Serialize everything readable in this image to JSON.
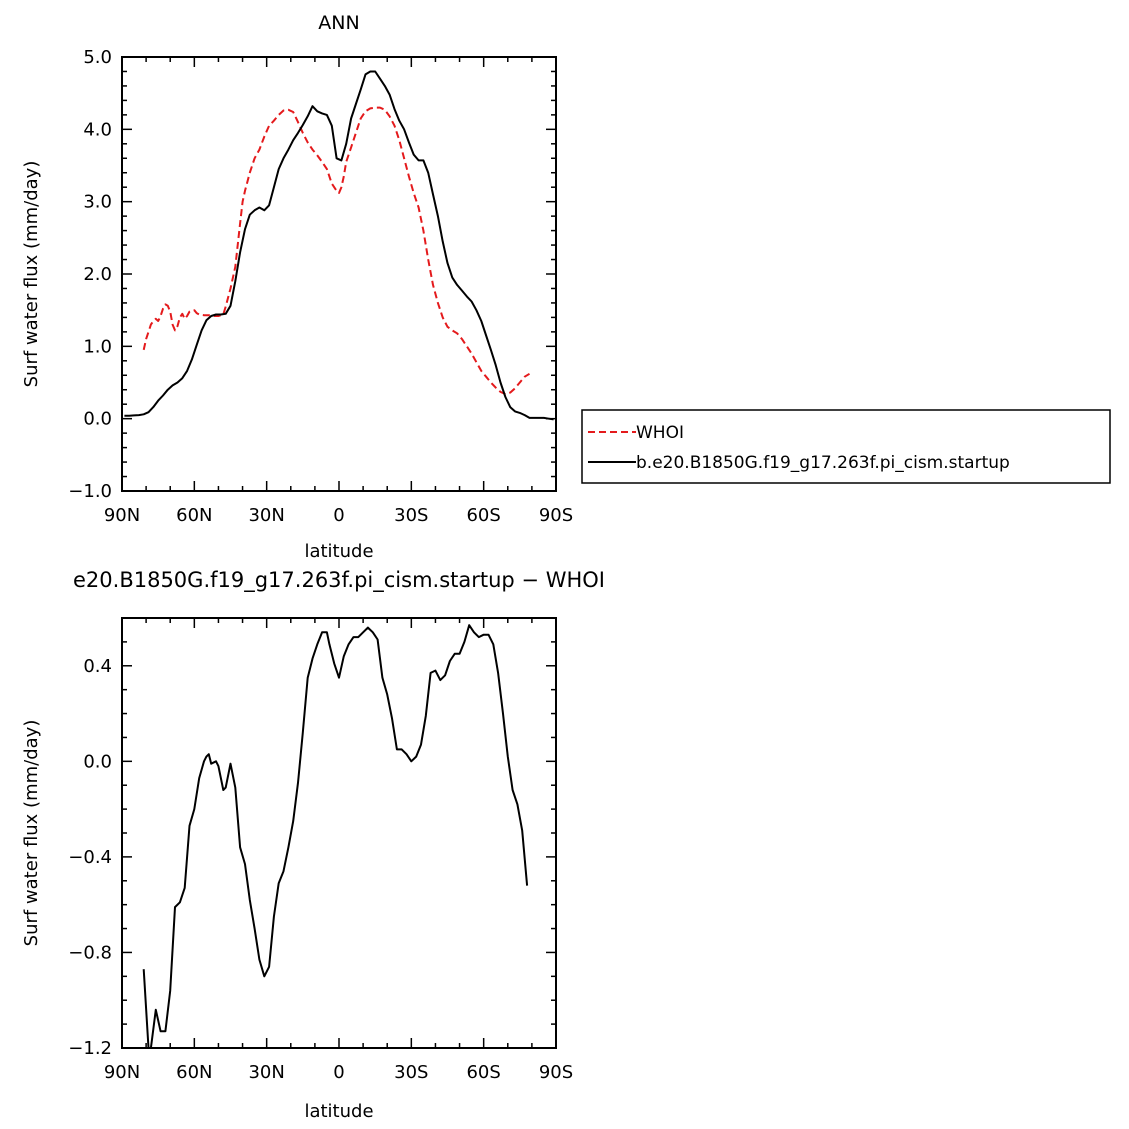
{
  "chart_data": [
    {
      "type": "line",
      "title": "ANN",
      "xlabel": "latitude",
      "ylabel": "Surf water flux (mm/day)",
      "xlim": [
        90,
        -90
      ],
      "ylim": [
        -1.0,
        5.0
      ],
      "x_ticks": [
        "90N",
        "60N",
        "30N",
        "0",
        "30S",
        "60S",
        "90S"
      ],
      "y_ticks": [
        "5.0",
        "4.0",
        "3.0",
        "2.0",
        "1.0",
        "0.0",
        "−1.0"
      ],
      "legend": {
        "placement": "right",
        "entries": [
          "WHOI",
          "b.e20.B1850G.f19_g17.263f.pi_cism.startup"
        ]
      },
      "series": [
        {
          "name": "WHOI",
          "color": "#e41a1c",
          "dash": "dashed",
          "x": [
            81,
            80,
            78,
            77,
            76,
            75,
            74,
            73,
            72,
            71,
            70,
            69,
            68,
            67,
            66,
            65,
            64,
            63,
            62,
            61,
            60,
            59,
            58,
            56,
            54,
            52,
            50,
            48,
            47,
            45,
            43,
            42,
            41,
            40,
            39,
            37,
            35,
            33,
            31,
            29,
            27,
            25,
            23,
            21,
            19,
            17,
            15,
            13,
            11,
            9,
            7,
            5,
            3,
            1,
            0,
            -1,
            -2,
            -3,
            -5,
            -7,
            -9,
            -11,
            -13,
            -15,
            -17,
            -19,
            -21,
            -23,
            -25,
            -27,
            -29,
            -31,
            -33,
            -35,
            -37,
            -39,
            -41,
            -43,
            -45,
            -47,
            -49,
            -51,
            -53,
            -55,
            -57,
            -59,
            -61,
            -63,
            -65,
            -67,
            -69,
            -71,
            -73,
            -75,
            -77,
            -79
          ],
          "y": [
            0.95,
            1.1,
            1.3,
            1.35,
            1.38,
            1.35,
            1.42,
            1.52,
            1.58,
            1.56,
            1.48,
            1.3,
            1.22,
            1.28,
            1.4,
            1.45,
            1.38,
            1.42,
            1.48,
            1.5,
            1.5,
            1.46,
            1.44,
            1.43,
            1.43,
            1.42,
            1.42,
            1.44,
            1.55,
            1.8,
            2.1,
            2.4,
            2.7,
            3.0,
            3.15,
            3.4,
            3.6,
            3.72,
            3.9,
            4.05,
            4.12,
            4.2,
            4.26,
            4.27,
            4.24,
            4.1,
            3.95,
            3.82,
            3.72,
            3.64,
            3.55,
            3.45,
            3.25,
            3.15,
            3.12,
            3.2,
            3.35,
            3.55,
            3.75,
            3.95,
            4.15,
            4.25,
            4.29,
            4.3,
            4.3,
            4.27,
            4.18,
            4.05,
            3.85,
            3.6,
            3.35,
            3.12,
            2.92,
            2.6,
            2.2,
            1.85,
            1.6,
            1.4,
            1.27,
            1.22,
            1.18,
            1.1,
            1.0,
            0.9,
            0.78,
            0.66,
            0.58,
            0.5,
            0.43,
            0.37,
            0.34,
            0.36,
            0.42,
            0.5,
            0.58,
            0.62
          ]
        },
        {
          "name": "b.e20.B1850G.f19_g17.263f.pi_cism.startup",
          "color": "#000000",
          "dash": "solid",
          "x": [
            89,
            87,
            85,
            83,
            81,
            79,
            77,
            75,
            73,
            71,
            69,
            67,
            65,
            63,
            61,
            59,
            57,
            55,
            53,
            51,
            49,
            47,
            45,
            43,
            41,
            39,
            37,
            35,
            33,
            31,
            29,
            27,
            25,
            23,
            21,
            19,
            17,
            15,
            13,
            11,
            9,
            7,
            5,
            3,
            1,
            -1,
            -3,
            -5,
            -7,
            -9,
            -11,
            -13,
            -15,
            -17,
            -19,
            -21,
            -23,
            -25,
            -27,
            -29,
            -31,
            -33,
            -35,
            -37,
            -39,
            -41,
            -43,
            -45,
            -47,
            -49,
            -51,
            -53,
            -55,
            -57,
            -59,
            -61,
            -63,
            -65,
            -67,
            -69,
            -71,
            -73,
            -75,
            -77,
            -79,
            -81,
            -83,
            -85,
            -87,
            -89
          ],
          "y": [
            0.04,
            0.04,
            0.045,
            0.05,
            0.06,
            0.09,
            0.16,
            0.25,
            0.32,
            0.4,
            0.46,
            0.5,
            0.56,
            0.66,
            0.82,
            1.02,
            1.22,
            1.36,
            1.42,
            1.44,
            1.44,
            1.45,
            1.56,
            1.9,
            2.3,
            2.62,
            2.82,
            2.88,
            2.92,
            2.88,
            2.95,
            3.2,
            3.45,
            3.6,
            3.72,
            3.85,
            3.95,
            4.06,
            4.18,
            4.32,
            4.25,
            4.22,
            4.2,
            4.05,
            3.6,
            3.57,
            3.8,
            4.15,
            4.35,
            4.55,
            4.76,
            4.8,
            4.8,
            4.7,
            4.6,
            4.48,
            4.28,
            4.12,
            4.0,
            3.82,
            3.65,
            3.57,
            3.57,
            3.4,
            3.1,
            2.8,
            2.45,
            2.15,
            1.95,
            1.85,
            1.77,
            1.69,
            1.62,
            1.5,
            1.35,
            1.15,
            0.95,
            0.74,
            0.5,
            0.3,
            0.16,
            0.1,
            0.08,
            0.05,
            0.01,
            0.01,
            0.01,
            0.01,
            0.0,
            -0.01
          ]
        }
      ]
    },
    {
      "type": "line",
      "title": "e20.B1850G.f19_g17.263f.pi_cism.startup − WHOI",
      "xlabel": "latitude",
      "ylabel": "Surf water flux (mm/day)",
      "xlim": [
        90,
        -90
      ],
      "ylim": [
        -1.2,
        0.6
      ],
      "x_ticks": [
        "90N",
        "60N",
        "30N",
        "0",
        "30S",
        "60S",
        "90S"
      ],
      "y_ticks": [
        "0.4",
        "0.0",
        "−0.4",
        "−0.8",
        "−1.2"
      ],
      "series": [
        {
          "color": "#000000",
          "dash": "solid",
          "x": [
            81,
            79,
            78,
            76,
            74,
            72,
            70,
            68,
            66,
            64,
            62,
            60,
            58,
            56,
            55,
            54,
            53,
            51,
            50,
            48,
            47,
            45,
            43,
            41,
            39,
            37,
            35,
            33,
            31,
            29,
            27,
            25,
            23,
            21,
            19,
            17,
            15,
            13,
            12,
            11,
            9,
            7,
            5,
            4,
            2,
            0,
            -2,
            -4,
            -6,
            -8,
            -10,
            -12,
            -14,
            -16,
            -18,
            -20,
            -22,
            -24,
            -26,
            -28,
            -30,
            -32,
            -34,
            -36,
            -38,
            -40,
            -42,
            -44,
            -46,
            -48,
            -50,
            -52,
            -54,
            -56,
            -58,
            -60,
            -62,
            -64,
            -66,
            -68,
            -70,
            -72,
            -74,
            -76,
            -78
          ],
          "y": [
            -0.87,
            -1.2,
            -1.2,
            -1.04,
            -1.13,
            -1.13,
            -0.96,
            -0.61,
            -0.59,
            -0.53,
            -0.27,
            -0.2,
            -0.07,
            0.0,
            0.02,
            0.03,
            -0.01,
            0.0,
            -0.02,
            -0.12,
            -0.11,
            -0.01,
            -0.11,
            -0.36,
            -0.43,
            -0.58,
            -0.7,
            -0.83,
            -0.9,
            -0.86,
            -0.65,
            -0.51,
            -0.46,
            -0.36,
            -0.25,
            -0.09,
            0.12,
            0.35,
            0.39,
            0.43,
            0.49,
            0.54,
            0.54,
            0.49,
            0.41,
            0.35,
            0.44,
            0.49,
            0.52,
            0.52,
            0.54,
            0.56,
            0.54,
            0.51,
            0.35,
            0.28,
            0.18,
            0.05,
            0.05,
            0.03,
            0.0,
            0.02,
            0.07,
            0.19,
            0.37,
            0.38,
            0.34,
            0.36,
            0.42,
            0.45,
            0.45,
            0.5,
            0.57,
            0.54,
            0.52,
            0.53,
            0.53,
            0.49,
            0.37,
            0.2,
            0.02,
            -0.12,
            -0.18,
            -0.29,
            -0.52
          ]
        }
      ]
    }
  ]
}
